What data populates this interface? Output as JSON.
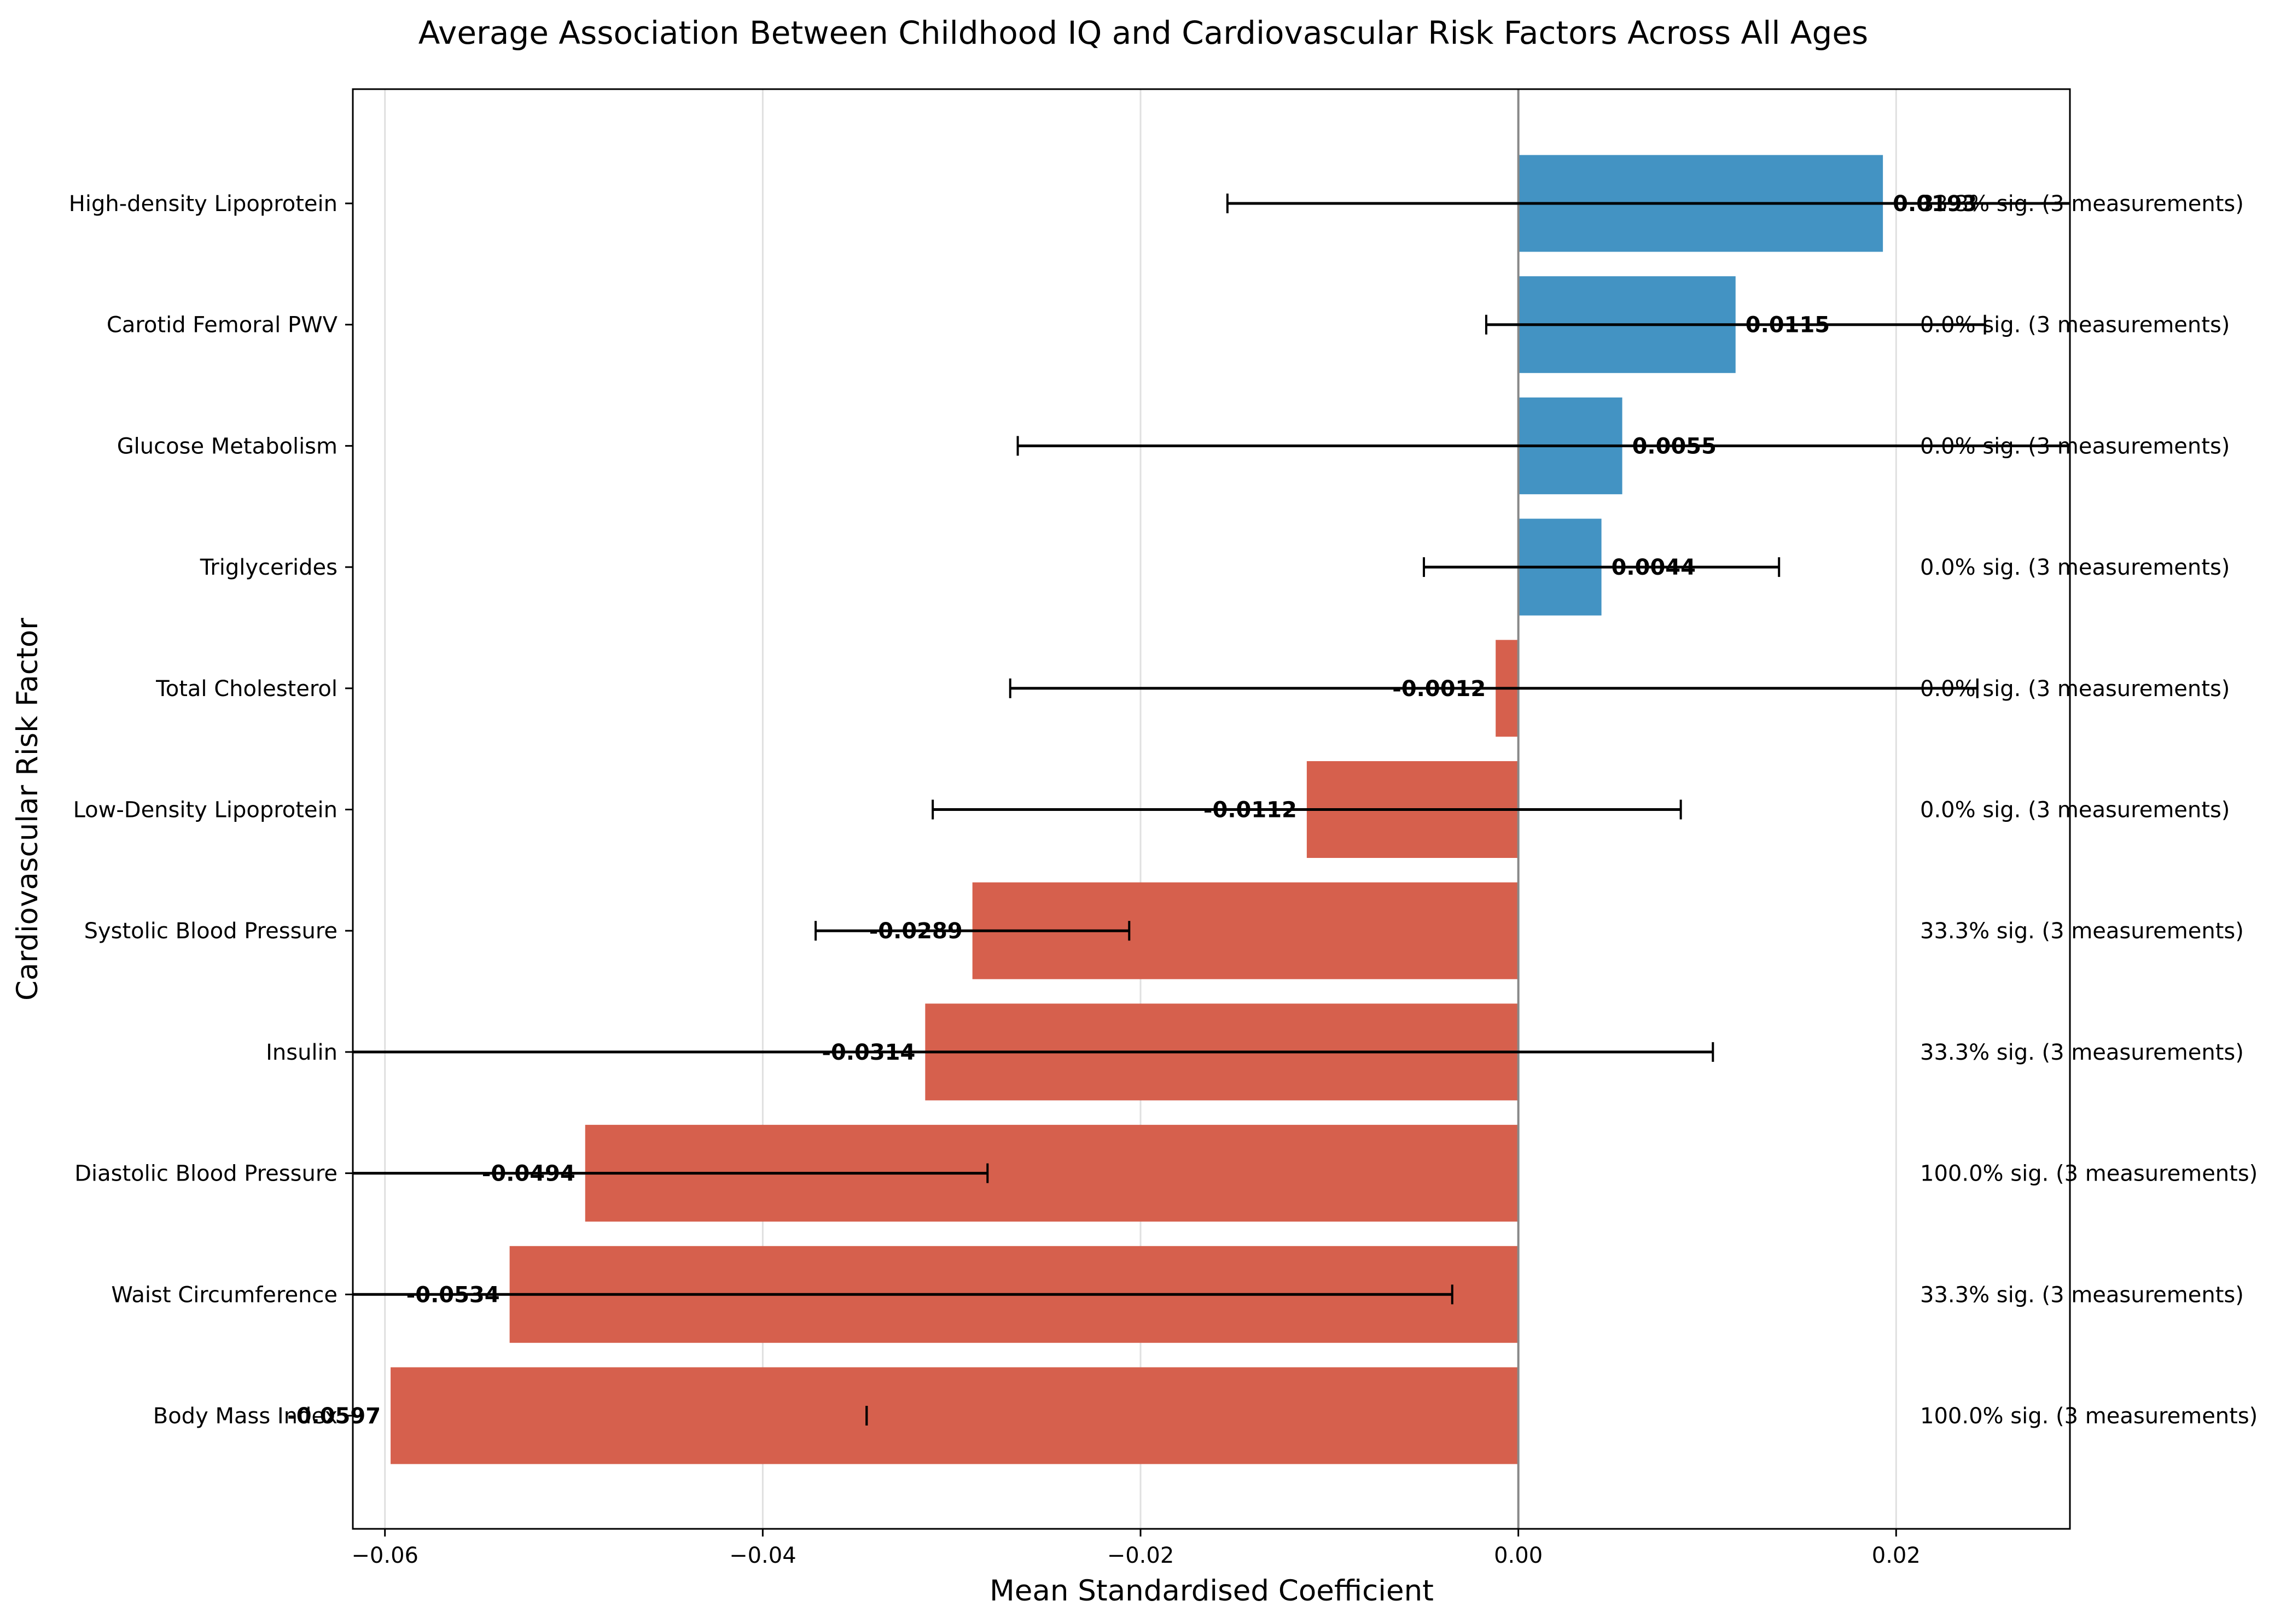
{
  "chart_data": {
    "type": "bar",
    "orientation": "horizontal",
    "title": "Average Association Between Childhood IQ and Cardiovascular Risk Factors Across All Ages",
    "xlabel": "Mean Standardised Coefficient",
    "ylabel": "Cardiovascular Risk Factor",
    "xlim": [
      -0.0617,
      0.0292
    ],
    "xticks": [
      -0.06,
      -0.04,
      -0.02,
      0.0,
      0.02
    ],
    "xtick_labels": [
      "−0.06",
      "−0.04",
      "−0.02",
      "0.00",
      "0.02"
    ],
    "grid": "vertical",
    "zero_line": true,
    "categories": [
      "High-density Lipoprotein",
      "Carotid Femoral PWV",
      "Glucose Metabolism",
      "Triglycerides",
      "Total Cholesterol",
      "Low-Density Lipoprotein",
      "Systolic Blood Pressure",
      "Insulin",
      "Diastolic Blood Pressure",
      "Waist Circumference",
      "Body Mass Index"
    ],
    "values": [
      0.0193,
      0.0115,
      0.0055,
      0.0044,
      -0.0012,
      -0.0112,
      -0.0289,
      -0.0314,
      -0.0494,
      -0.0534,
      -0.0597
    ],
    "value_labels": [
      "0.0193",
      "0.0115",
      "0.0055",
      "0.0044",
      "-0.0012",
      "-0.0112",
      "-0.0289",
      "-0.0314",
      "-0.0494",
      "-0.0534",
      "-0.0597"
    ],
    "error_low": [
      -0.0154,
      -0.0017,
      -0.0265,
      -0.005,
      -0.0269,
      -0.031,
      -0.0372,
      -0.0629,
      -0.0621,
      -0.0628,
      -0.0345
    ],
    "error_high": [
      0.0308,
      0.0247,
      0.0327,
      0.0138,
      0.0243,
      0.0086,
      -0.0206,
      0.0103,
      -0.0281,
      -0.0035,
      -0.0345
    ],
    "significance_labels": [
      "33.3% sig. (3 measurements)",
      "0.0% sig. (3 measurements)",
      "0.0% sig. (3 measurements)",
      "0.0% sig. (3 measurements)",
      "0.0% sig. (3 measurements)",
      "0.0% sig. (3 measurements)",
      "33.3% sig. (3 measurements)",
      "33.3% sig. (3 measurements)",
      "100.0% sig. (3 measurements)",
      "33.3% sig. (3 measurements)",
      "100.0% sig. (3 measurements)"
    ],
    "colors": {
      "positive": "#4393c3",
      "negative": "#d6604d",
      "zero_line": "#888888",
      "grid": "#e0e0e0",
      "error_bar": "#000000"
    }
  }
}
